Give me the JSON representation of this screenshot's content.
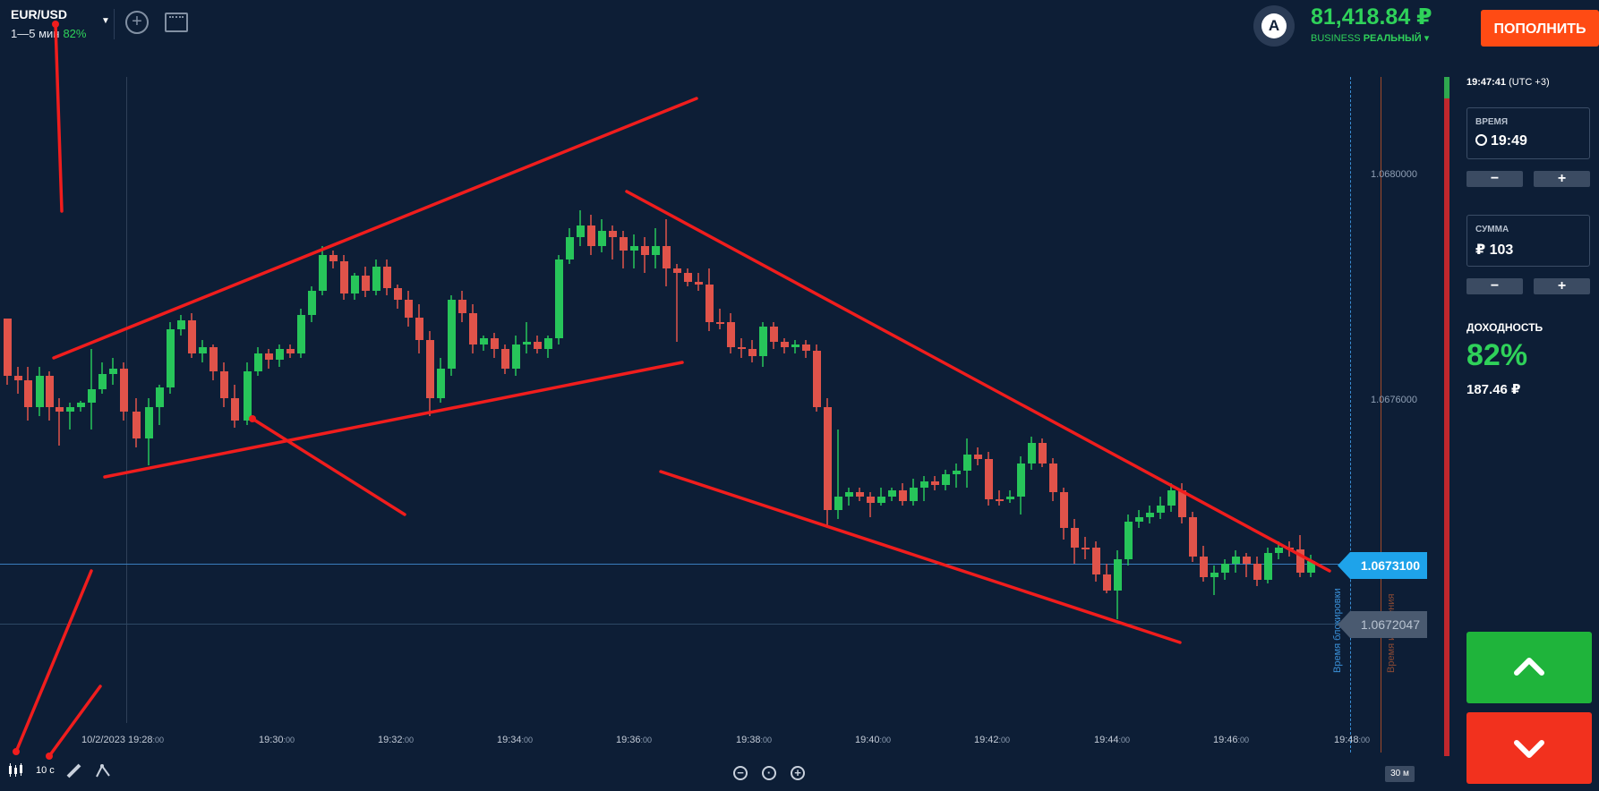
{
  "asset": {
    "pair": "EUR/USD",
    "expiry_range": "1—5 мин",
    "payout": "82%"
  },
  "toolbar": {
    "add_icon": "plus-circle-icon",
    "layout_icon": "layout-icon",
    "dropdown_icon": "caret-down-icon"
  },
  "account": {
    "avatar_letter": "A",
    "balance": "81,418.84 ₽",
    "tier": "BUSINESS",
    "type": "РЕАЛЬНЫЙ ▾"
  },
  "deposit_button": "ПОПОЛНИТЬ",
  "clock": {
    "time": "19:47:41",
    "tz": "(UTC +3)"
  },
  "trade_panel": {
    "time_label": "ВРЕМЯ",
    "time_value": "19:49",
    "amount_label": "СУММА",
    "amount_value": "₽ 103",
    "minus": "−",
    "plus": "+",
    "yield_label": "ДОХОДНОСТЬ",
    "yield_pct": "82%",
    "yield_amount": "187.46 ₽"
  },
  "chart": {
    "y_ticks": [
      {
        "label": "1.0680000",
        "value": 1.068
      },
      {
        "label": "1.0676000",
        "value": 1.0676
      }
    ],
    "x_ticks": [
      {
        "date": "10/2/2023 19:28",
        "sec": ":00"
      },
      {
        "time": "19:30",
        "sec": ":00"
      },
      {
        "time": "19:32",
        "sec": ":00"
      },
      {
        "time": "19:34",
        "sec": ":00"
      },
      {
        "time": "19:36",
        "sec": ":00"
      },
      {
        "time": "19:38",
        "sec": ":00"
      },
      {
        "time": "19:40",
        "sec": ":00"
      },
      {
        "time": "19:42",
        "sec": ":00"
      },
      {
        "time": "19:44",
        "sec": ":00"
      },
      {
        "time": "19:46",
        "sec": ":00"
      },
      {
        "time": "19:48",
        "sec": ":00"
      }
    ],
    "current_price": "1.0673100",
    "prev_price": "1.0672047",
    "lock_label": "Время блокировки",
    "expiry_label": "Время истечения",
    "timeframe": "10 с",
    "zoom_scale": "30 м",
    "up_color": "#27c55a",
    "down_color": "#e0534a",
    "drawing_color": "#f01d1d"
  }
}
